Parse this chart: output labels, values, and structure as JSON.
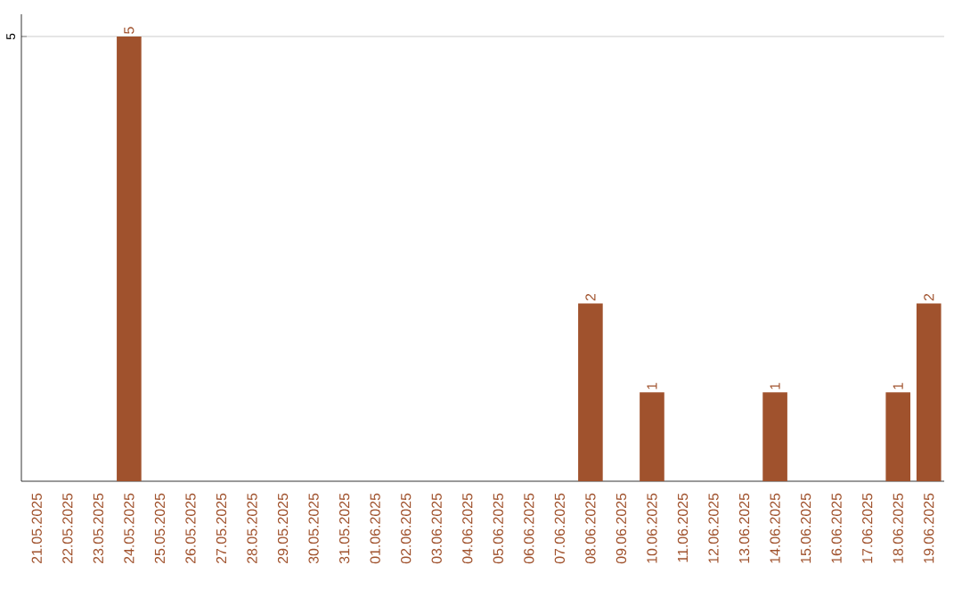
{
  "chart_data": {
    "type": "bar",
    "categories": [
      "21.05.2025",
      "22.05.2025",
      "23.05.2025",
      "24.05.2025",
      "25.05.2025",
      "26.05.2025",
      "27.05.2025",
      "28.05.2025",
      "29.05.2025",
      "30.05.2025",
      "31.05.2025",
      "01.06.2025",
      "02.06.2025",
      "03.06.2025",
      "04.06.2025",
      "05.06.2025",
      "06.06.2025",
      "07.06.2025",
      "08.06.2025",
      "09.06.2025",
      "10.06.2025",
      "11.06.2025",
      "12.06.2025",
      "13.06.2025",
      "14.06.2025",
      "15.06.2025",
      "16.06.2025",
      "17.06.2025",
      "18.06.2025",
      "19.06.2025"
    ],
    "values": [
      0,
      0,
      0,
      5,
      0,
      0,
      0,
      0,
      0,
      0,
      0,
      0,
      0,
      0,
      0,
      0,
      0,
      0,
      2,
      0,
      1,
      0,
      0,
      0,
      1,
      0,
      0,
      0,
      1,
      2
    ],
    "value_labels": [
      null,
      null,
      null,
      "5",
      null,
      null,
      null,
      null,
      null,
      null,
      null,
      null,
      null,
      null,
      null,
      null,
      null,
      null,
      "2",
      null,
      "1",
      null,
      null,
      null,
      "1",
      null,
      null,
      null,
      "1",
      "2"
    ],
    "color": "#a0522d",
    "ylim": [
      0,
      5.25
    ],
    "yticks": [
      5
    ],
    "grid": "y"
  }
}
